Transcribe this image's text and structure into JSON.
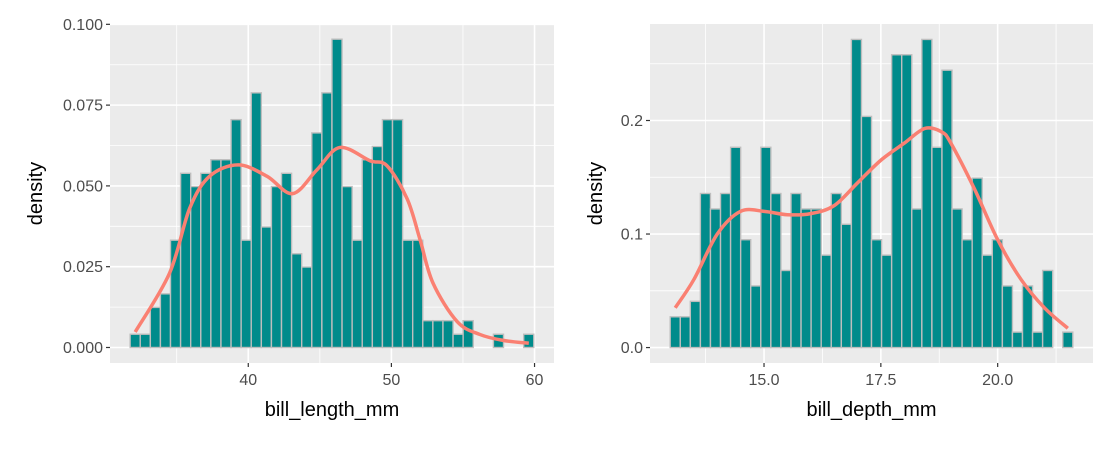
{
  "colors": {
    "panel": "#EBEBEB",
    "grid": "#FFFFFF",
    "bar_fill": "#008B8B",
    "bar_outline": "#BEBEBE",
    "density_line": "#FA8072"
  },
  "chart_data": [
    {
      "type": "bar",
      "subtype": "histogram-with-density",
      "title": "",
      "xlabel": "bill_length_mm",
      "ylabel": "density",
      "xlim": [
        30.34,
        61.36
      ],
      "ylim": [
        -0.0048,
        0.1001
      ],
      "grid": true,
      "x_ticks": [
        {
          "value": 40,
          "label": "40"
        },
        {
          "value": 50,
          "label": "50"
        },
        {
          "value": 60,
          "label": "60"
        }
      ],
      "y_ticks": [
        {
          "value": 0,
          "label": "0.000"
        },
        {
          "value": 0.025,
          "label": "0.025"
        },
        {
          "value": 0.05,
          "label": "0.050"
        },
        {
          "value": 0.075,
          "label": "0.075"
        },
        {
          "value": 0.1,
          "label": "0.100"
        }
      ],
      "bins": {
        "first_center": 32.1,
        "binwidth": 0.705,
        "density": [
          0.0041,
          0.0041,
          0.0124,
          0.0166,
          0.0332,
          0.0539,
          0.0498,
          0.0539,
          0.0581,
          0.0581,
          0.0705,
          0.0332,
          0.0788,
          0.0373,
          0.0498,
          0.0539,
          0.029,
          0.0249,
          0.0664,
          0.0788,
          0.0954,
          0.0498,
          0.0332,
          0.0581,
          0.0622,
          0.0705,
          0.0705,
          0.0332,
          0.0332,
          0.0083,
          0.0083,
          0.0083,
          0.0041,
          0.0083,
          0,
          0,
          0.0041,
          0,
          0,
          0.0041
        ]
      },
      "density_curve": {
        "x": [
          32.1,
          34.5,
          35.9,
          37.3,
          39.3,
          41.3,
          43.1,
          44.8,
          46.4,
          48.5,
          49.7,
          51.1,
          52.0,
          52.9,
          54.6,
          56.2,
          57.8,
          59.6
        ],
        "y": [
          0.0048,
          0.023,
          0.043,
          0.053,
          0.0565,
          0.053,
          0.0476,
          0.055,
          0.0619,
          0.0578,
          0.0562,
          0.046,
          0.0334,
          0.02,
          0.008,
          0.004,
          0.0022,
          0.0013
        ]
      }
    },
    {
      "type": "bar",
      "subtype": "histogram-with-density",
      "title": "",
      "xlabel": "bill_depth_mm",
      "ylabel": "density",
      "xlim": [
        12.56,
        22.04
      ],
      "ylim": [
        -0.0136,
        0.285
      ],
      "grid": true,
      "x_ticks": [
        {
          "value": 15,
          "label": "15.0"
        },
        {
          "value": 17.5,
          "label": "17.5"
        },
        {
          "value": 20,
          "label": "20.0"
        }
      ],
      "y_ticks": [
        {
          "value": 0,
          "label": "0.0"
        },
        {
          "value": 0.1,
          "label": "0.1"
        },
        {
          "value": 0.2,
          "label": "0.2"
        }
      ],
      "bins": {
        "first_center": 13.1,
        "binwidth": 0.2154,
        "density": [
          0.0271,
          0.0271,
          0.0407,
          0.1357,
          0.1221,
          0.1357,
          0.1764,
          0.095,
          0.0543,
          0.1764,
          0.1357,
          0.0679,
          0.1357,
          0.1221,
          0.1221,
          0.0814,
          0.1357,
          0.1086,
          0.2714,
          0.2036,
          0.095,
          0.0814,
          0.2579,
          0.2579,
          0.1221,
          0.2714,
          0.1764,
          0.2443,
          0.1221,
          0.095,
          0.1493,
          0.0814,
          0.095,
          0.0543,
          0.0136,
          0.0543,
          0.0136,
          0.0679,
          0,
          0.0136
        ]
      },
      "density_curve": {
        "x": [
          13.1,
          13.5,
          14.0,
          14.5,
          15.0,
          15.5,
          16.0,
          16.5,
          17.0,
          17.5,
          18.0,
          18.44,
          18.8,
          19.0,
          19.5,
          20.0,
          20.5,
          21.0,
          21.5
        ],
        "y": [
          0.035,
          0.06,
          0.1,
          0.12,
          0.12,
          0.117,
          0.118,
          0.125,
          0.145,
          0.165,
          0.18,
          0.193,
          0.19,
          0.18,
          0.14,
          0.095,
          0.06,
          0.035,
          0.017
        ]
      }
    }
  ]
}
